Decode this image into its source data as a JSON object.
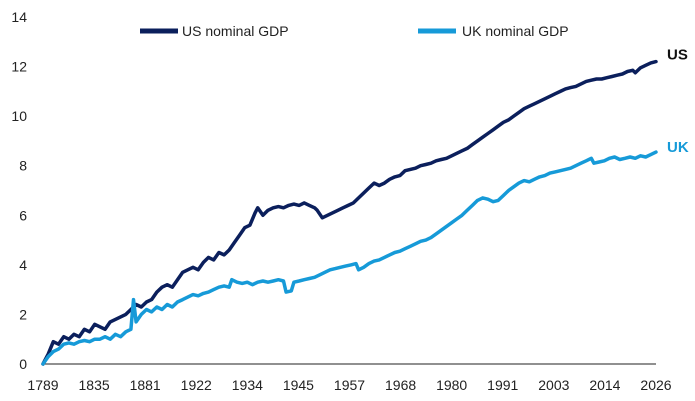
{
  "chart_data": {
    "type": "line",
    "title": "",
    "xlabel": "",
    "ylabel": "",
    "xlim": [
      1789,
      2026
    ],
    "ylim": [
      0,
      14
    ],
    "x_ticks": [
      "1789",
      "1835",
      "1881",
      "1922",
      "1934",
      "1945",
      "1957",
      "1968",
      "1980",
      "1991",
      "2003",
      "2014",
      "2026"
    ],
    "y_ticks": [
      "0",
      "2",
      "4",
      "6",
      "8",
      "10",
      "12",
      "14"
    ],
    "grid": false,
    "legend_position": "top",
    "series": [
      {
        "name": "US nominal GDP",
        "end_label": "US",
        "color": "#0b1f5c",
        "points": [
          [
            1789,
            0.0
          ],
          [
            1791,
            0.4
          ],
          [
            1793,
            0.9
          ],
          [
            1795,
            0.8
          ],
          [
            1797,
            1.1
          ],
          [
            1799,
            1.0
          ],
          [
            1801,
            1.2
          ],
          [
            1803,
            1.1
          ],
          [
            1805,
            1.4
          ],
          [
            1807,
            1.3
          ],
          [
            1809,
            1.6
          ],
          [
            1811,
            1.5
          ],
          [
            1813,
            1.4
          ],
          [
            1815,
            1.7
          ],
          [
            1817,
            1.8
          ],
          [
            1819,
            1.9
          ],
          [
            1821,
            2.0
          ],
          [
            1823,
            2.2
          ],
          [
            1825,
            2.4
          ],
          [
            1827,
            2.3
          ],
          [
            1829,
            2.5
          ],
          [
            1831,
            2.6
          ],
          [
            1833,
            2.9
          ],
          [
            1835,
            3.1
          ],
          [
            1837,
            3.2
          ],
          [
            1839,
            3.1
          ],
          [
            1841,
            3.4
          ],
          [
            1843,
            3.7
          ],
          [
            1845,
            3.8
          ],
          [
            1847,
            3.9
          ],
          [
            1849,
            3.8
          ],
          [
            1851,
            4.1
          ],
          [
            1853,
            4.3
          ],
          [
            1855,
            4.2
          ],
          [
            1857,
            4.5
          ],
          [
            1859,
            4.4
          ],
          [
            1861,
            4.6
          ],
          [
            1863,
            4.9
          ],
          [
            1865,
            5.2
          ],
          [
            1867,
            5.5
          ],
          [
            1869,
            5.6
          ],
          [
            1871,
            6.1
          ],
          [
            1872,
            6.3
          ],
          [
            1874,
            6.0
          ],
          [
            1876,
            6.2
          ],
          [
            1878,
            6.3
          ],
          [
            1880,
            6.35
          ],
          [
            1882,
            6.3
          ],
          [
            1884,
            6.4
          ],
          [
            1886,
            6.45
          ],
          [
            1888,
            6.4
          ],
          [
            1890,
            6.5
          ],
          [
            1892,
            6.4
          ],
          [
            1894,
            6.3
          ],
          [
            1895,
            6.2
          ],
          [
            1897,
            5.9
          ],
          [
            1899,
            6.0
          ],
          [
            1901,
            6.1
          ],
          [
            1903,
            6.2
          ],
          [
            1905,
            6.3
          ],
          [
            1907,
            6.4
          ],
          [
            1909,
            6.5
          ],
          [
            1911,
            6.7
          ],
          [
            1913,
            6.9
          ],
          [
            1915,
            7.1
          ],
          [
            1917,
            7.3
          ],
          [
            1919,
            7.2
          ],
          [
            1921,
            7.3
          ],
          [
            1923,
            7.45
          ],
          [
            1925,
            7.55
          ],
          [
            1927,
            7.6
          ],
          [
            1929,
            7.8
          ],
          [
            1931,
            7.85
          ],
          [
            1933,
            7.9
          ],
          [
            1935,
            8.0
          ],
          [
            1937,
            8.05
          ],
          [
            1939,
            8.1
          ],
          [
            1941,
            8.2
          ],
          [
            1943,
            8.25
          ],
          [
            1945,
            8.3
          ],
          [
            1947,
            8.4
          ],
          [
            1949,
            8.5
          ],
          [
            1951,
            8.6
          ],
          [
            1953,
            8.7
          ],
          [
            1955,
            8.85
          ],
          [
            1957,
            9.0
          ],
          [
            1959,
            9.15
          ],
          [
            1961,
            9.3
          ],
          [
            1963,
            9.45
          ],
          [
            1965,
            9.6
          ],
          [
            1967,
            9.75
          ],
          [
            1969,
            9.85
          ],
          [
            1971,
            10.0
          ],
          [
            1973,
            10.15
          ],
          [
            1975,
            10.3
          ],
          [
            1977,
            10.4
          ],
          [
            1979,
            10.5
          ],
          [
            1981,
            10.6
          ],
          [
            1983,
            10.7
          ],
          [
            1985,
            10.8
          ],
          [
            1987,
            10.9
          ],
          [
            1989,
            11.0
          ],
          [
            1991,
            11.1
          ],
          [
            1993,
            11.15
          ],
          [
            1995,
            11.2
          ],
          [
            1997,
            11.3
          ],
          [
            1999,
            11.4
          ],
          [
            2001,
            11.45
          ],
          [
            2003,
            11.5
          ],
          [
            2005,
            11.5
          ],
          [
            2007,
            11.55
          ],
          [
            2009,
            11.6
          ],
          [
            2011,
            11.65
          ],
          [
            2013,
            11.7
          ],
          [
            2015,
            11.8
          ],
          [
            2017,
            11.85
          ],
          [
            2018,
            11.75
          ],
          [
            2020,
            11.95
          ],
          [
            2022,
            12.05
          ],
          [
            2024,
            12.15
          ],
          [
            2026,
            12.2
          ]
        ]
      },
      {
        "name": "UK nominal GDP",
        "end_label": "UK",
        "color": "#169ad8",
        "points": [
          [
            1789,
            0.0
          ],
          [
            1791,
            0.3
          ],
          [
            1793,
            0.5
          ],
          [
            1795,
            0.6
          ],
          [
            1797,
            0.8
          ],
          [
            1799,
            0.85
          ],
          [
            1801,
            0.8
          ],
          [
            1803,
            0.9
          ],
          [
            1805,
            0.95
          ],
          [
            1807,
            0.9
          ],
          [
            1809,
            1.0
          ],
          [
            1811,
            1.0
          ],
          [
            1813,
            1.1
          ],
          [
            1815,
            1.0
          ],
          [
            1817,
            1.2
          ],
          [
            1819,
            1.1
          ],
          [
            1821,
            1.3
          ],
          [
            1823,
            1.4
          ],
          [
            1824,
            2.6
          ],
          [
            1825,
            1.7
          ],
          [
            1827,
            2.0
          ],
          [
            1829,
            2.2
          ],
          [
            1831,
            2.1
          ],
          [
            1833,
            2.3
          ],
          [
            1835,
            2.2
          ],
          [
            1837,
            2.4
          ],
          [
            1839,
            2.3
          ],
          [
            1841,
            2.5
          ],
          [
            1843,
            2.6
          ],
          [
            1845,
            2.7
          ],
          [
            1847,
            2.8
          ],
          [
            1849,
            2.75
          ],
          [
            1851,
            2.85
          ],
          [
            1853,
            2.9
          ],
          [
            1855,
            3.0
          ],
          [
            1857,
            3.1
          ],
          [
            1859,
            3.15
          ],
          [
            1861,
            3.1
          ],
          [
            1862,
            3.4
          ],
          [
            1864,
            3.3
          ],
          [
            1866,
            3.25
          ],
          [
            1868,
            3.3
          ],
          [
            1870,
            3.2
          ],
          [
            1872,
            3.3
          ],
          [
            1874,
            3.35
          ],
          [
            1876,
            3.3
          ],
          [
            1878,
            3.35
          ],
          [
            1880,
            3.4
          ],
          [
            1882,
            3.35
          ],
          [
            1883,
            2.9
          ],
          [
            1885,
            2.95
          ],
          [
            1886,
            3.3
          ],
          [
            1888,
            3.35
          ],
          [
            1890,
            3.4
          ],
          [
            1892,
            3.45
          ],
          [
            1894,
            3.5
          ],
          [
            1896,
            3.6
          ],
          [
            1898,
            3.7
          ],
          [
            1900,
            3.8
          ],
          [
            1902,
            3.85
          ],
          [
            1904,
            3.9
          ],
          [
            1906,
            3.95
          ],
          [
            1908,
            4.0
          ],
          [
            1910,
            4.05
          ],
          [
            1911,
            3.8
          ],
          [
            1913,
            3.9
          ],
          [
            1915,
            4.05
          ],
          [
            1917,
            4.15
          ],
          [
            1919,
            4.2
          ],
          [
            1921,
            4.3
          ],
          [
            1923,
            4.4
          ],
          [
            1925,
            4.5
          ],
          [
            1927,
            4.55
          ],
          [
            1929,
            4.65
          ],
          [
            1931,
            4.75
          ],
          [
            1933,
            4.85
          ],
          [
            1935,
            4.95
          ],
          [
            1937,
            5.0
          ],
          [
            1939,
            5.1
          ],
          [
            1941,
            5.25
          ],
          [
            1943,
            5.4
          ],
          [
            1945,
            5.55
          ],
          [
            1947,
            5.7
          ],
          [
            1949,
            5.85
          ],
          [
            1951,
            6.0
          ],
          [
            1953,
            6.2
          ],
          [
            1955,
            6.4
          ],
          [
            1957,
            6.6
          ],
          [
            1959,
            6.7
          ],
          [
            1961,
            6.65
          ],
          [
            1963,
            6.55
          ],
          [
            1965,
            6.6
          ],
          [
            1967,
            6.8
          ],
          [
            1969,
            7.0
          ],
          [
            1971,
            7.15
          ],
          [
            1973,
            7.3
          ],
          [
            1975,
            7.4
          ],
          [
            1977,
            7.35
          ],
          [
            1979,
            7.45
          ],
          [
            1981,
            7.55
          ],
          [
            1983,
            7.6
          ],
          [
            1985,
            7.7
          ],
          [
            1987,
            7.75
          ],
          [
            1989,
            7.8
          ],
          [
            1991,
            7.85
          ],
          [
            1993,
            7.9
          ],
          [
            1995,
            8.0
          ],
          [
            1997,
            8.1
          ],
          [
            1999,
            8.2
          ],
          [
            2001,
            8.3
          ],
          [
            2002,
            8.1
          ],
          [
            2004,
            8.15
          ],
          [
            2006,
            8.2
          ],
          [
            2008,
            8.3
          ],
          [
            2010,
            8.35
          ],
          [
            2012,
            8.25
          ],
          [
            2014,
            8.3
          ],
          [
            2016,
            8.35
          ],
          [
            2018,
            8.3
          ],
          [
            2020,
            8.4
          ],
          [
            2022,
            8.35
          ],
          [
            2024,
            8.45
          ],
          [
            2026,
            8.55
          ]
        ]
      }
    ]
  }
}
